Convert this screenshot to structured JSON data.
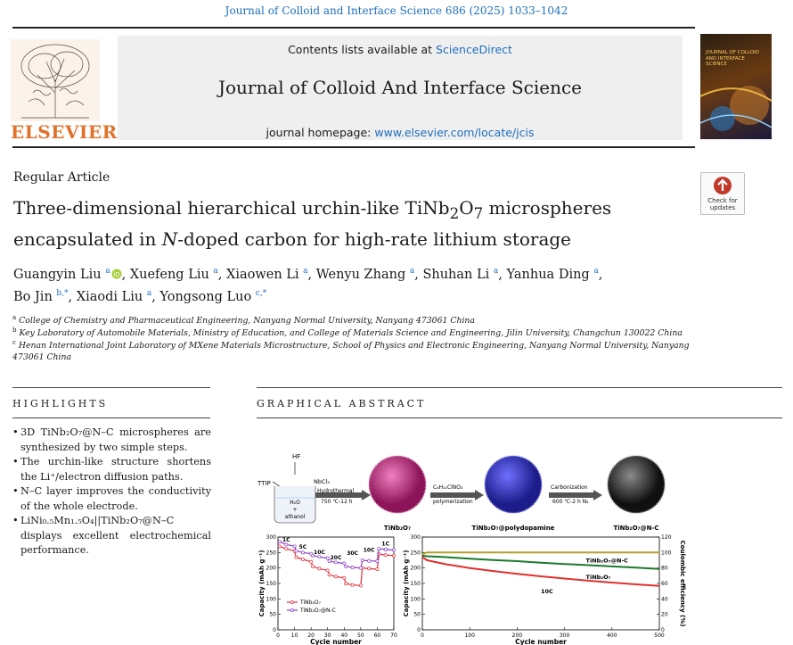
{
  "journal_ref": "Journal of Colloid and Interface Science 686 (2025) 1033–1042",
  "header": {
    "contents_prefix": "Contents lists available at ",
    "contents_link": "ScienceDirect",
    "journal_name": "Journal of Colloid And Interface Science",
    "homepage_prefix": "journal homepage: ",
    "homepage_link": "www.elsevier.com/locate/jcis",
    "publisher": "ELSEVIER",
    "cover_title": "JOURNAL OF COLLOID AND INTERFACE SCIENCE"
  },
  "check_updates": {
    "line1": "Check for",
    "line2": "updates"
  },
  "article": {
    "type": "Regular Article",
    "title_line1_pre": "Three-dimensional hierarchical urchin-like TiNb",
    "title_line1_sub1": "2",
    "title_line1_mid": "O",
    "title_line1_sub2": "7",
    "title_line1_post": " microspheres",
    "title_line2_pre": "encapsulated in ",
    "title_line2_italic": "N",
    "title_line2_post": "-doped carbon for high-rate lithium storage"
  },
  "authors": [
    {
      "name": "Guangyin Liu",
      "sup": "a",
      "orcid": true
    },
    {
      "name": "Xuefeng Liu",
      "sup": "a"
    },
    {
      "name": "Xiaowen Li",
      "sup": "a"
    },
    {
      "name": "Wenyu Zhang",
      "sup": "a"
    },
    {
      "name": "Shuhan Li",
      "sup": "a"
    },
    {
      "name": "Yanhua Ding",
      "sup": "a"
    },
    {
      "name": "Bo Jin",
      "sup": "b,*"
    },
    {
      "name": "Xiaodi Liu",
      "sup": "a"
    },
    {
      "name": "Yongsong Luo",
      "sup": "c,*"
    }
  ],
  "affiliations": [
    {
      "sup": "a",
      "text": "College of Chemistry and Pharmaceutical Engineering, Nanyang Normal University, Nanyang 473061 China"
    },
    {
      "sup": "b",
      "text": "Key Laboratory of Automobile Materials, Ministry of Education, and College of Materials Science and Engineering, Jilin University, Changchun 130022 China"
    },
    {
      "sup": "c",
      "text": "Henan International Joint Laboratory of MXene Materials Microstructure, School of Physics and Electronic Engineering, Nanyang Normal University, Nanyang 473061 China"
    }
  ],
  "highlights": {
    "heading": "HIGHLIGHTS",
    "items": [
      "3D TiNb₂O₇@N–C microspheres are synthesized by two simple steps.",
      "The urchin-like structure shortens the Li⁺/electron diffusion paths.",
      "N–C layer improves the conductivity of the whole electrode.",
      "LiNi₀.₅Mn₁.₅O₄||TiNb₂O₇@N–C displays excellent electrochemical performance."
    ]
  },
  "graphical_abstract": {
    "heading": "GRAPHICAL ABSTRACT",
    "scheme": {
      "hf": "HF",
      "ttip": "TTIP",
      "nbcl5": "NbCl₅",
      "hydrothermal": "Hydrothermal",
      "hydro_cond": "750 ℃-12 h",
      "beaker_line1": "H₂O",
      "beaker_line2": "+",
      "beaker_line3": "athanol",
      "sphere1": "TiNb₂O₇",
      "reagent2": "C₈H₁₁ClNO₂",
      "step2": "polymerization",
      "sphere2": "TiNb₂O₇@polydopamine",
      "step3": "Carbonization",
      "step3_cond": "600 ℃-2 h N₂",
      "sphere3": "TiNb₂O₇@N-C",
      "colors": {
        "sphere1": "#c2277e",
        "sphere2": "#3535c8",
        "sphere3": "#2b2b2b"
      }
    }
  },
  "chart_data": [
    {
      "type": "line",
      "xlabel": "Cycle number",
      "ylabel": "Capacity (mAh g⁻¹)",
      "xlim": [
        0,
        70
      ],
      "ylim": [
        0,
        300
      ],
      "xticks": [
        0,
        10,
        20,
        30,
        40,
        50,
        60,
        70
      ],
      "yticks": [
        0,
        50,
        100,
        150,
        200,
        250,
        300
      ],
      "rate_labels": [
        {
          "text": "1C",
          "x": 5,
          "y": 285
        },
        {
          "text": "5C",
          "x": 15,
          "y": 262
        },
        {
          "text": "10C",
          "x": 25,
          "y": 245
        },
        {
          "text": "20C",
          "x": 35,
          "y": 228
        },
        {
          "text": "30C",
          "x": 45,
          "y": 242
        },
        {
          "text": "10C",
          "x": 55,
          "y": 253
        },
        {
          "text": "1C",
          "x": 65,
          "y": 272
        }
      ],
      "series": [
        {
          "name": "TiNb₂O₇",
          "color": "#e0303a",
          "x": [
            1,
            5,
            10,
            11,
            15,
            20,
            21,
            25,
            30,
            31,
            35,
            40,
            41,
            45,
            50,
            51,
            55,
            60,
            61,
            65,
            70
          ],
          "values": [
            270,
            262,
            255,
            235,
            228,
            220,
            205,
            198,
            192,
            178,
            172,
            168,
            150,
            145,
            143,
            200,
            198,
            196,
            245,
            242,
            240
          ]
        },
        {
          "name": "TiNb₂O₇@N-C",
          "color": "#8a3fc4",
          "x": [
            1,
            5,
            10,
            11,
            15,
            20,
            21,
            25,
            30,
            31,
            35,
            40,
            41,
            45,
            50,
            51,
            55,
            60,
            61,
            65,
            70
          ],
          "values": [
            285,
            276,
            270,
            255,
            250,
            246,
            240,
            236,
            232,
            222,
            218,
            215,
            205,
            202,
            200,
            225,
            223,
            222,
            262,
            260,
            258
          ]
        }
      ]
    },
    {
      "type": "line",
      "xlabel": "Cycle number",
      "ylabel": "Capacity (mAh g⁻¹)",
      "ylabel_right": "Coulombic efficiency (%)",
      "xlim": [
        0,
        500
      ],
      "ylim": [
        0,
        300
      ],
      "ylim_right": [
        0,
        120
      ],
      "xticks": [
        0,
        100,
        200,
        300,
        400,
        500
      ],
      "yticks": [
        0,
        50,
        100,
        150,
        200,
        250,
        300
      ],
      "yticks_right": [
        0,
        20,
        40,
        60,
        80,
        100,
        120
      ],
      "annotation": "10C",
      "series": [
        {
          "name": "TiNb₂O₇@N-C",
          "color": "#1a7a2a",
          "x": [
            0,
            10,
            50,
            100,
            150,
            200,
            250,
            300,
            350,
            400,
            450,
            500
          ],
          "values": [
            240,
            238,
            235,
            230,
            226,
            222,
            217,
            213,
            209,
            205,
            201,
            197
          ]
        },
        {
          "name": "TiNb₂O₇",
          "color": "#e03030",
          "x": [
            0,
            10,
            50,
            100,
            150,
            200,
            250,
            300,
            350,
            400,
            450,
            500
          ],
          "values": [
            235,
            225,
            212,
            200,
            190,
            181,
            173,
            166,
            159,
            153,
            147,
            142
          ]
        },
        {
          "name": "Coulombic efficiency",
          "color": "#b5a02a",
          "axis": "right",
          "x": [
            0,
            10,
            100,
            200,
            300,
            400,
            500
          ],
          "values": [
            98,
            100,
            100,
            100,
            100,
            100,
            100
          ]
        }
      ]
    }
  ]
}
